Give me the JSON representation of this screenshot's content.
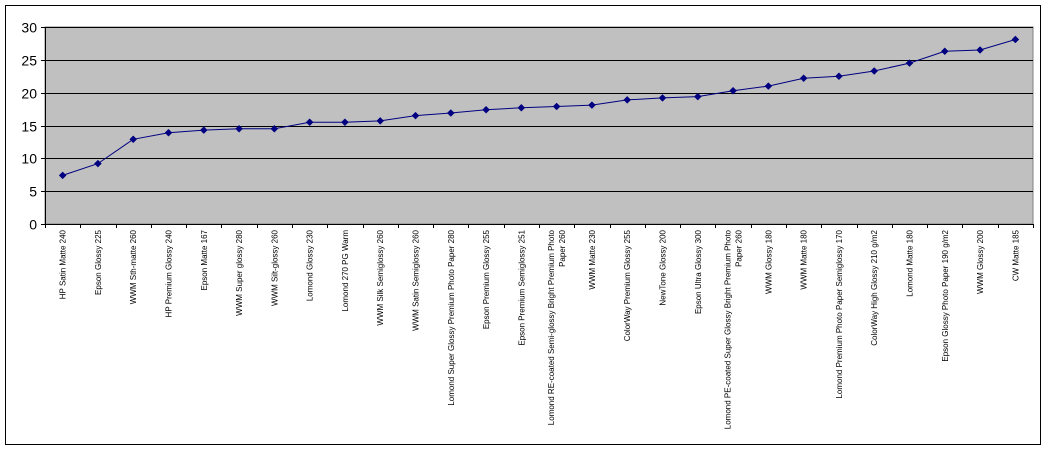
{
  "chart_data": {
    "type": "line",
    "title": "",
    "xlabel": "",
    "ylabel": "",
    "ylim": [
      0,
      30
    ],
    "yticks": [
      0,
      5,
      10,
      15,
      20,
      25,
      30
    ],
    "grid": "horizontal",
    "legend": "none",
    "colors": {
      "plot_background": "#c0c0c0",
      "line": "#000080",
      "gridline": "#000000"
    },
    "categories": [
      [
        "HP Satin Matte 240"
      ],
      [
        "Epson Glossy 225"
      ],
      [
        "WWM Sth-matte 260"
      ],
      [
        "HP Premium Glossy 240"
      ],
      [
        "Epson Matte 167"
      ],
      [
        "WWM Super glossy 280"
      ],
      [
        "WWM Silt-glossy 260"
      ],
      [
        "Lomond Glossy 230"
      ],
      [
        "Lomond 270 PG Warm"
      ],
      [
        "WWM Silk Semiglossy 260"
      ],
      [
        "WWM  Satin Semiglossy 260"
      ],
      [
        "Lomond Super Glossy Premium Photo Paper 280"
      ],
      [
        "Epson Premium Glossy 255"
      ],
      [
        "Epson Premium Semiglossy 251"
      ],
      [
        "Lomond RE-coated Semi-glossy Bright Premium Photo",
        "Paper 260"
      ],
      [
        "WWM Matte 230"
      ],
      [
        "ColorWay Premium Glossy 255"
      ],
      [
        "NewTone Glossy 200"
      ],
      [
        "Epson Ultra Glossy 300"
      ],
      [
        "Lomond PE-coated Super Glossy Bright Premium Photo",
        "Paper 260"
      ],
      [
        "WWM Glossy 180"
      ],
      [
        "WWM Matte 180"
      ],
      [
        "Lomond Premium Photo Paper Semiglossy 170"
      ],
      [
        "ColorWay High Glossy 210 g/m2"
      ],
      [
        "Lomond Matte 180"
      ],
      [
        "Epson Glossy Photo Paper 190 g/m2"
      ],
      [
        "WWM Glossy 200"
      ],
      [
        "CW Matte 185"
      ]
    ],
    "series": [
      {
        "values": [
          7.4,
          9.2,
          12.9,
          13.9,
          14.3,
          14.5,
          14.5,
          15.5,
          15.5,
          15.7,
          16.5,
          16.9,
          17.4,
          17.7,
          17.9,
          18.1,
          18.9,
          19.2,
          19.4,
          20.3,
          21.0,
          22.2,
          22.5,
          23.3,
          24.5,
          26.3,
          26.5,
          28.1
        ]
      }
    ]
  }
}
